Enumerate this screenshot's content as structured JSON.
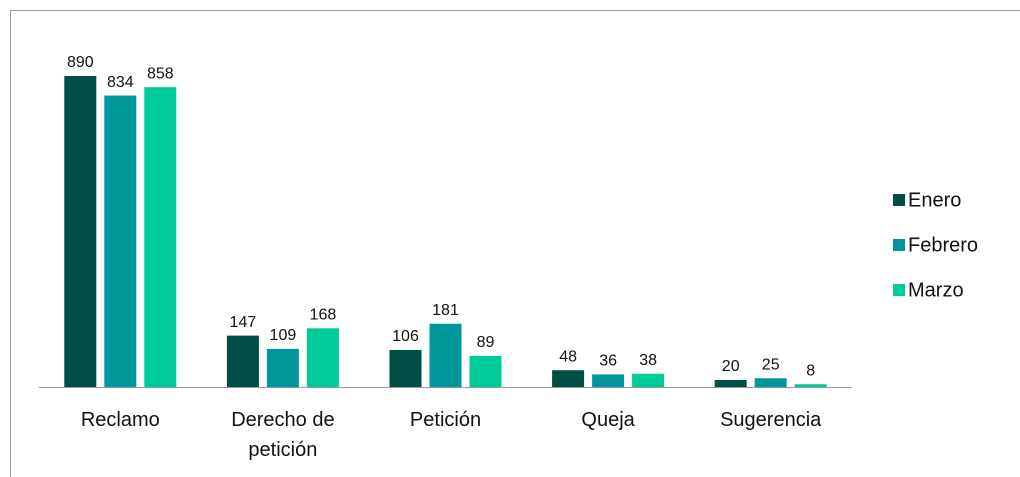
{
  "chart_data": {
    "type": "bar",
    "categories": [
      "Reclamo",
      "Derecho de petición",
      "Petición",
      "Queja",
      "Sugerencia"
    ],
    "series": [
      {
        "name": "Enero",
        "color": "#004d45",
        "values": [
          890,
          147,
          106,
          48,
          20
        ]
      },
      {
        "name": "Febrero",
        "color": "#00979a",
        "values": [
          834,
          109,
          181,
          36,
          25
        ]
      },
      {
        "name": "Marzo",
        "color": "#00cc99",
        "values": [
          858,
          168,
          89,
          38,
          8
        ]
      }
    ],
    "legend": "right"
  }
}
